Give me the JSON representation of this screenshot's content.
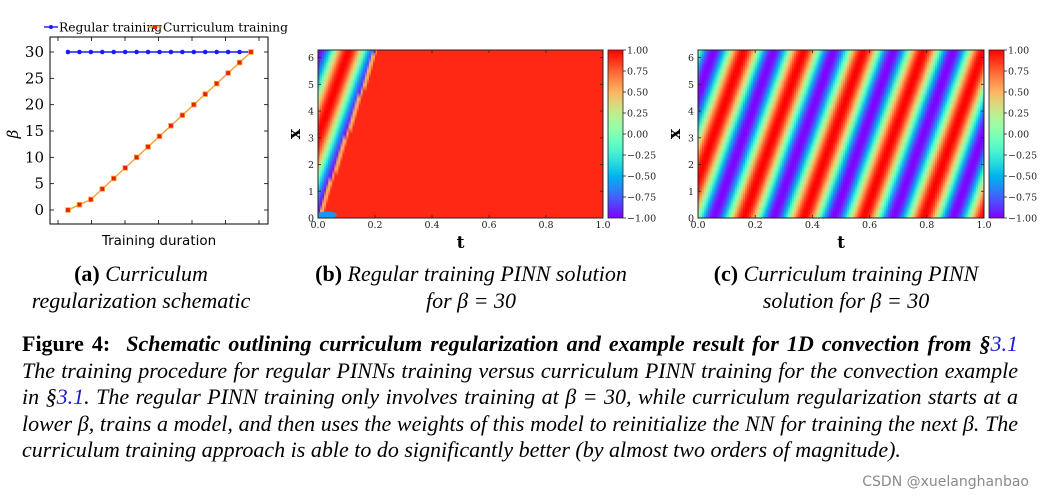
{
  "figure": {
    "label": "Figure 4:",
    "title_bold_italic": "Schematic outlining curriculum regularization and example result for 1D convection from §",
    "title_ref": "3.1",
    "body_part1": " The training procedure for regular PINNs training versus curriculum PINN training for the convection example in §",
    "body_ref": "3.1",
    "body_part2": ". The regular PINN training only involves training at β = 30, while curriculum regularization starts at a lower β, trains a model, and then uses the weights of this model to reinitialize the NN for training the next β. The curriculum training approach is able to do significantly better (by almost two orders of magnitude).",
    "ref_color": "#1a1ad6"
  },
  "subcaptions": {
    "a": {
      "tag": "(a)",
      "line1": "Curriculum",
      "line2": "regularization schematic"
    },
    "b": {
      "tag": "(b)",
      "line1": "Regular training PINN solution",
      "line2": "for β = 30"
    },
    "c": {
      "tag": "(c)",
      "line1": "Curriculum training PINN",
      "line2": "solution for β = 30"
    }
  },
  "watermark": "CSDN @xuelanghanbao",
  "chart_data": [
    {
      "id": "a",
      "type": "line",
      "title": "",
      "xlabel": "Training duration",
      "ylabel": "β",
      "ylim": [
        -3,
        32
      ],
      "yticks": [
        0,
        5,
        10,
        15,
        20,
        25,
        30
      ],
      "xticks_labels": [],
      "grid": false,
      "legend_position": "top",
      "x": [
        0,
        1,
        2,
        3,
        4,
        5,
        6,
        7,
        8,
        9,
        10,
        11,
        12,
        13,
        14,
        15,
        16
      ],
      "series": [
        {
          "name": "Regular training",
          "color": "#1a1aff",
          "marker": "circle",
          "values": [
            30,
            30,
            30,
            30,
            30,
            30,
            30,
            30,
            30,
            30,
            30,
            30,
            30,
            30,
            30,
            30,
            30
          ]
        },
        {
          "name": "Curriculum training",
          "color": "#f5a030",
          "marker_color": "#e8200a",
          "marker": "square",
          "values": [
            0,
            1,
            2,
            4,
            6,
            8,
            10,
            12,
            14,
            16,
            18,
            20,
            22,
            24,
            26,
            28,
            30
          ]
        }
      ]
    },
    {
      "id": "b",
      "type": "heatmap",
      "title": "",
      "xlabel": "t",
      "ylabel": "x",
      "xlim": [
        0,
        1
      ],
      "ylim": [
        0,
        6.283
      ],
      "xticks": [
        "0.0",
        "0.2",
        "0.4",
        "0.6",
        "0.8",
        "1.0"
      ],
      "yticks": [
        "0",
        "1",
        "2",
        "3",
        "4",
        "5",
        "6"
      ],
      "colorbar": {
        "min": -1,
        "max": 1,
        "ticks": [
          "1.00",
          "0.75",
          "0.50",
          "0.25",
          "0.00",
          "−0.25",
          "−0.50",
          "−0.75",
          "−1.00"
        ],
        "colormap": "rainbow"
      },
      "description": "Failed solution: sinusoidal stripes only near t<0.2, rest saturates ≈0.9",
      "beta": 30,
      "decay_t": 0.2,
      "fill_value": 0.9
    },
    {
      "id": "c",
      "type": "heatmap",
      "title": "",
      "xlabel": "t",
      "ylabel": "x",
      "xlim": [
        0,
        1
      ],
      "ylim": [
        0,
        6.283
      ],
      "xticks": [
        "0.0",
        "0.2",
        "0.4",
        "0.6",
        "0.8",
        "1.0"
      ],
      "yticks": [
        "0",
        "1",
        "2",
        "3",
        "4",
        "5",
        "6"
      ],
      "colorbar": {
        "min": -1,
        "max": 1,
        "ticks": [
          "1.00",
          "0.75",
          "0.50",
          "0.25",
          "0.00",
          "−0.25",
          "−0.50",
          "−0.75",
          "−1.00"
        ],
        "colormap": "rainbow"
      },
      "description": "u(x,t) = sin(x − 30t): diagonal stripes across full domain",
      "beta": 30
    }
  ]
}
